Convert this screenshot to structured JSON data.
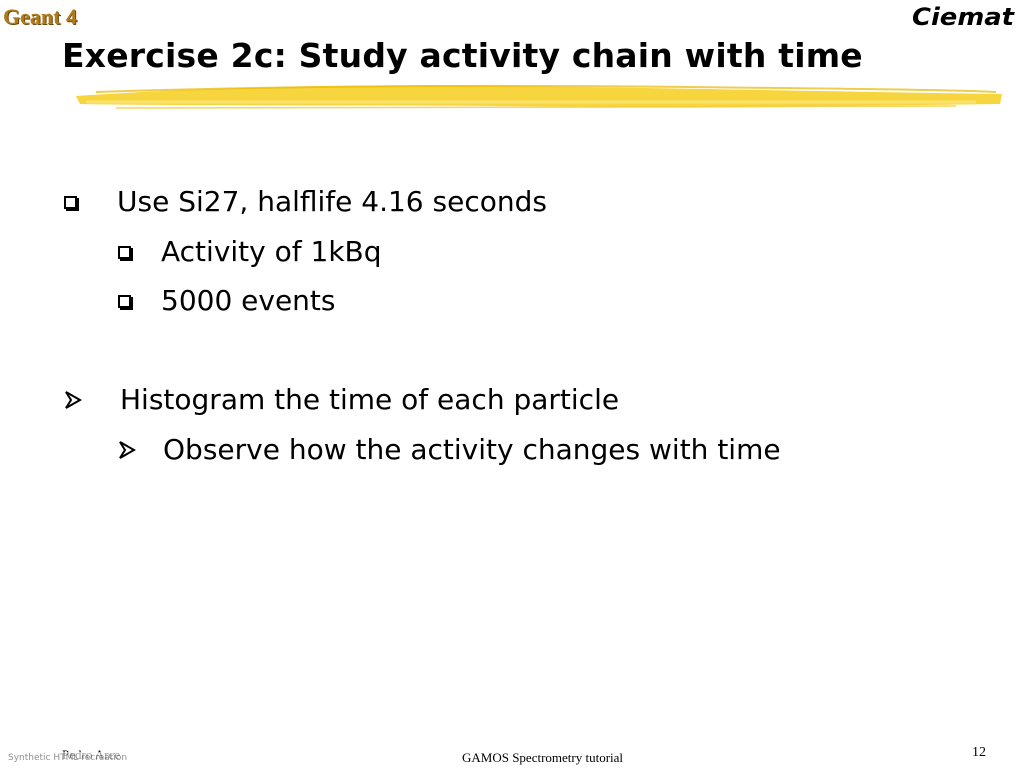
{
  "header": {
    "top_label": "Geant 4",
    "logo_text": "Ciemat",
    "title": "Exercise 2c: Study activity chain with time"
  },
  "content": {
    "items": [
      {
        "bullet": "box",
        "level": 1,
        "text": "Use Si27, halflife 4.16 seconds"
      },
      {
        "bullet": "box",
        "level": 2,
        "text": "Activity of 1kBq"
      },
      {
        "bullet": "box",
        "level": 2,
        "text": "5000 events"
      },
      {
        "bullet": "arrow",
        "level": 1,
        "text": "Histogram the time of each particle"
      },
      {
        "bullet": "arrow",
        "level": 2,
        "text": "Observe how the activity changes with time"
      }
    ]
  },
  "footer": {
    "author": "Pedro Arce",
    "center": "GAMOS Spectrometry tutorial",
    "page_number": "12"
  },
  "colors": {
    "accent_stroke": "#f5d02a",
    "top_label": "#b07a1a",
    "text": "#000000"
  },
  "badge": {
    "text": "Synthetic HTML recreation"
  }
}
